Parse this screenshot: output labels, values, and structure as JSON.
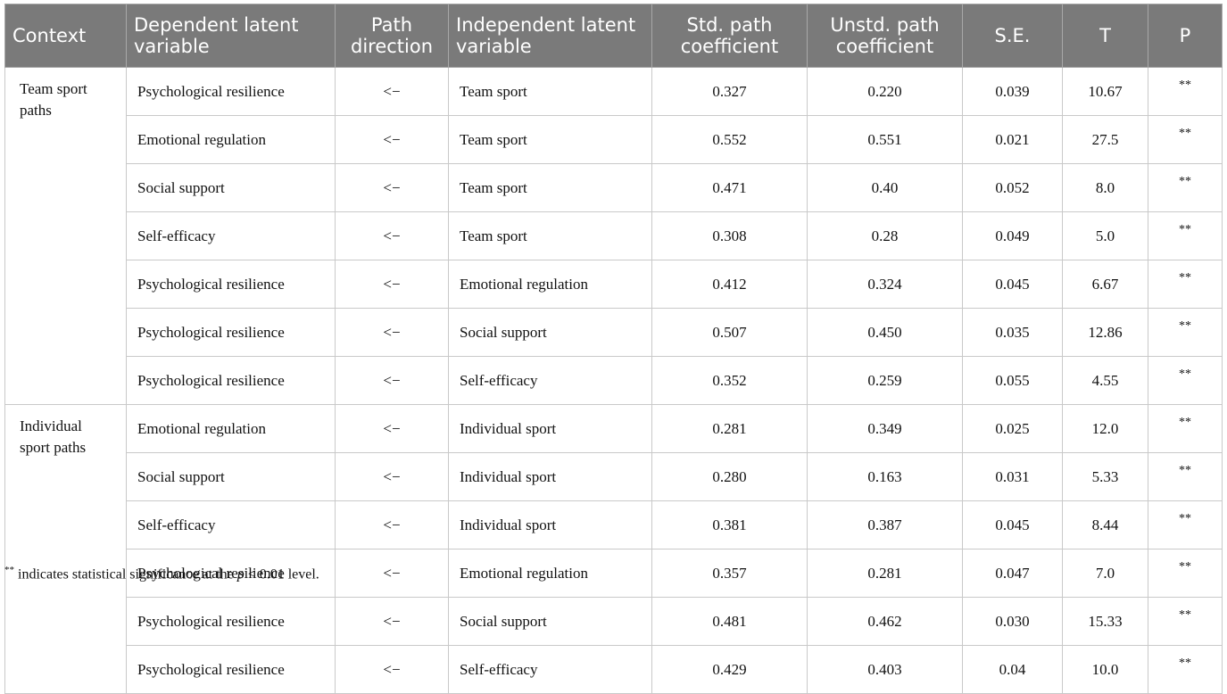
{
  "table": {
    "headers": [
      "Context",
      "Dependent latent variable",
      "Path direction",
      "Independent latent variable",
      "Std. path coefficient",
      "Unstd. path coefficient",
      "S.E.",
      "T",
      "P"
    ],
    "groups": [
      {
        "context": "Team sport paths",
        "rows": [
          [
            "Psychological resilience",
            "<−",
            "Team sport",
            "0.327",
            "0.220",
            "0.039",
            "10.67",
            "**"
          ],
          [
            "Emotional regulation",
            "<−",
            "Team sport",
            "0.552",
            "0.551",
            "0.021",
            "27.5",
            "**"
          ],
          [
            "Social support",
            "<−",
            "Team sport",
            "0.471",
            "0.40",
            "0.052",
            "8.0",
            "**"
          ],
          [
            "Self-efficacy",
            "<−",
            "Team sport",
            "0.308",
            "0.28",
            "0.049",
            "5.0",
            "**"
          ],
          [
            "Psychological resilience",
            "<−",
            "Emotional regulation",
            "0.412",
            "0.324",
            "0.045",
            "6.67",
            "**"
          ],
          [
            "Psychological resilience",
            "<−",
            "Social support",
            "0.507",
            "0.450",
            "0.035",
            "12.86",
            "**"
          ],
          [
            "Psychological resilience",
            "<−",
            "Self-efficacy",
            "0.352",
            "0.259",
            "0.055",
            "4.55",
            "**"
          ]
        ]
      },
      {
        "context": "Individual sport paths",
        "rows": [
          [
            "Emotional regulation",
            "<−",
            "Individual sport",
            "0.281",
            "0.349",
            "0.025",
            "12.0",
            "**"
          ],
          [
            "Social support",
            "<−",
            "Individual sport",
            "0.280",
            "0.163",
            "0.031",
            "5.33",
            "**"
          ],
          [
            "Self-efficacy",
            "<−",
            "Individual sport",
            "0.381",
            "0.387",
            "0.045",
            "8.44",
            "**"
          ],
          [
            "Psychological resilience",
            "<−",
            "Emotional regulation",
            "0.357",
            "0.281",
            "0.047",
            "7.0",
            "**"
          ],
          [
            "Psychological resilience",
            "<−",
            "Social support",
            "0.481",
            "0.462",
            "0.030",
            "15.33",
            "**"
          ],
          [
            "Psychological resilience",
            "<−",
            "Self-efficacy",
            "0.429",
            "0.403",
            "0.04",
            "10.0",
            "**"
          ]
        ]
      }
    ]
  },
  "footnote": {
    "marker": "**",
    "text_before": " indicates statistical significance at the ",
    "p_symbol": "p",
    "text_after": " < 0.01 level."
  },
  "colors": {
    "header_bg": "#7a7a7a",
    "header_text": "#ffffff",
    "border": "#c9c9c9"
  }
}
